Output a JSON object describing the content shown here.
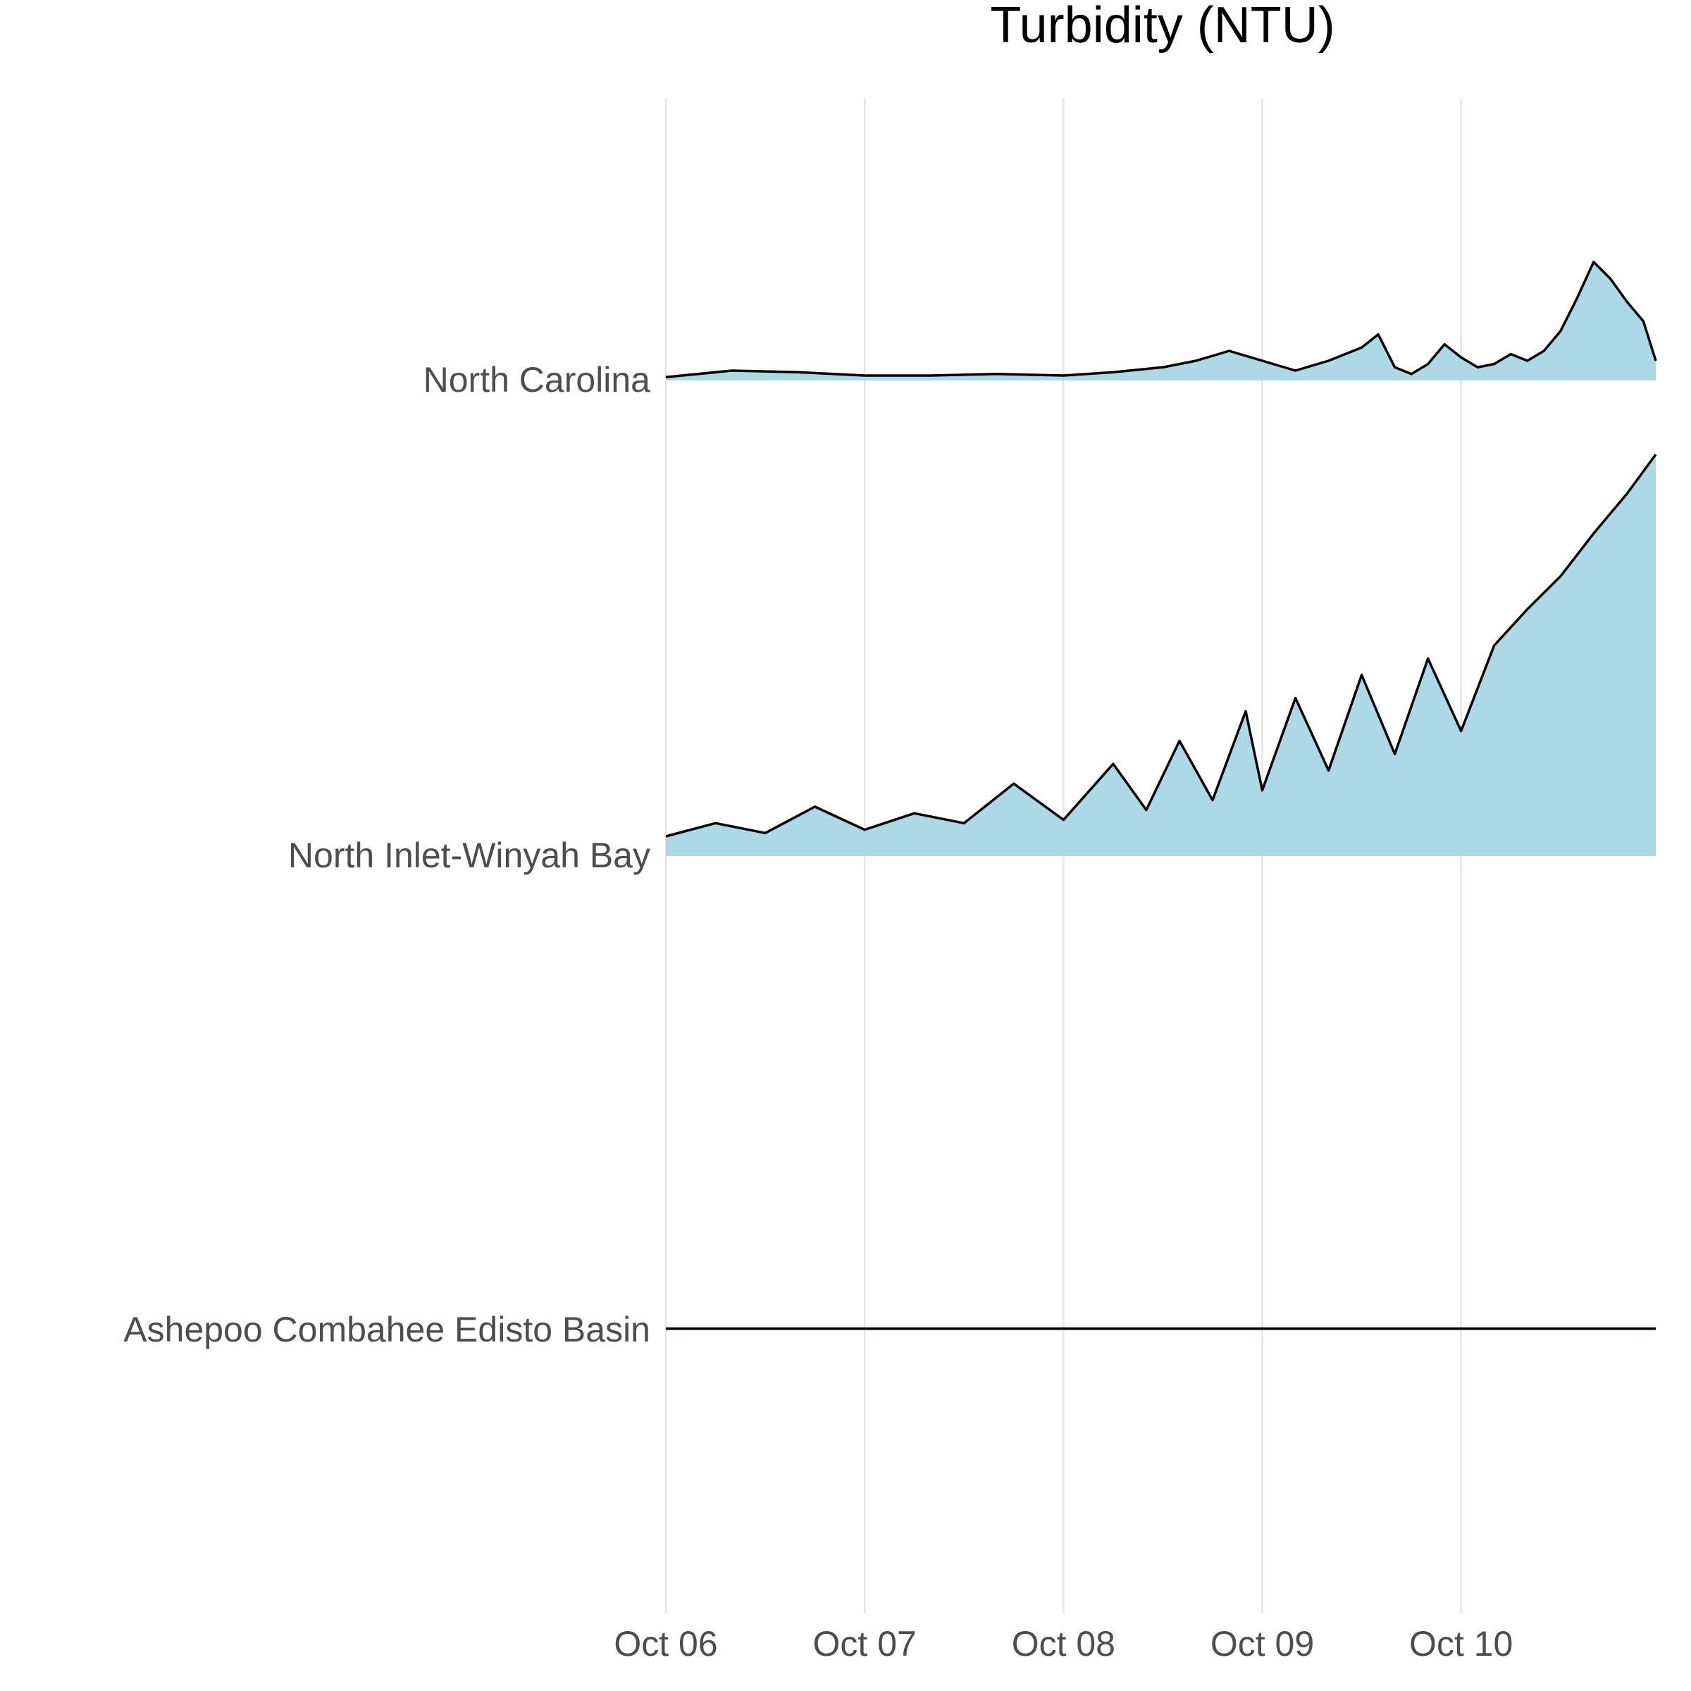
{
  "chart_data": {
    "type": "area",
    "subtype": "ridgeline",
    "title": "Turbidity (NTU)",
    "xlabel": "",
    "ylabel": "",
    "x_axis": {
      "type": "date",
      "range": [
        "2024-10-06T00:00",
        "2024-10-10T23:30"
      ],
      "tick_values": [
        "2024-10-06",
        "2024-10-07",
        "2024-10-08",
        "2024-10-09",
        "2024-10-10"
      ],
      "tick_labels": [
        "Oct 06",
        "Oct 07",
        "Oct 08",
        "Oct 09",
        "Oct 10"
      ]
    },
    "grid": {
      "vertical": true,
      "horizontal": false
    },
    "legend": "none",
    "fill_color": "#add8e6",
    "line_color": "#000000",
    "series_order_top_to_bottom": [
      "North Carolina",
      "North Inlet-Winyah Bay",
      "Ashepoo Combahee Edisto Basin"
    ],
    "series": [
      {
        "name": "North Carolina",
        "points": [
          [
            "2024-10-06T00:00",
            2
          ],
          [
            "2024-10-06T08:00",
            6
          ],
          [
            "2024-10-06T16:00",
            5
          ],
          [
            "2024-10-07T00:00",
            3
          ],
          [
            "2024-10-07T08:00",
            3
          ],
          [
            "2024-10-07T16:00",
            4
          ],
          [
            "2024-10-08T00:00",
            3
          ],
          [
            "2024-10-08T06:00",
            5
          ],
          [
            "2024-10-08T12:00",
            8
          ],
          [
            "2024-10-08T16:00",
            12
          ],
          [
            "2024-10-08T20:00",
            18
          ],
          [
            "2024-10-09T00:00",
            12
          ],
          [
            "2024-10-09T04:00",
            6
          ],
          [
            "2024-10-09T08:00",
            12
          ],
          [
            "2024-10-09T12:00",
            20
          ],
          [
            "2024-10-09T14:00",
            28
          ],
          [
            "2024-10-09T16:00",
            8
          ],
          [
            "2024-10-09T18:00",
            4
          ],
          [
            "2024-10-09T20:00",
            10
          ],
          [
            "2024-10-09T22:00",
            22
          ],
          [
            "2024-10-10T00:00",
            14
          ],
          [
            "2024-10-10T02:00",
            8
          ],
          [
            "2024-10-10T04:00",
            10
          ],
          [
            "2024-10-10T06:00",
            16
          ],
          [
            "2024-10-10T08:00",
            12
          ],
          [
            "2024-10-10T10:00",
            18
          ],
          [
            "2024-10-10T12:00",
            30
          ],
          [
            "2024-10-10T14:00",
            50
          ],
          [
            "2024-10-10T16:00",
            72
          ],
          [
            "2024-10-10T18:00",
            62
          ],
          [
            "2024-10-10T20:00",
            48
          ],
          [
            "2024-10-10T22:00",
            36
          ],
          [
            "2024-10-10T23:30",
            12
          ]
        ]
      },
      {
        "name": "North Inlet-Winyah Bay",
        "points": [
          [
            "2024-10-06T00:00",
            12
          ],
          [
            "2024-10-06T06:00",
            20
          ],
          [
            "2024-10-06T12:00",
            14
          ],
          [
            "2024-10-06T18:00",
            30
          ],
          [
            "2024-10-07T00:00",
            16
          ],
          [
            "2024-10-07T06:00",
            26
          ],
          [
            "2024-10-07T12:00",
            20
          ],
          [
            "2024-10-07T18:00",
            44
          ],
          [
            "2024-10-08T00:00",
            22
          ],
          [
            "2024-10-08T06:00",
            56
          ],
          [
            "2024-10-08T10:00",
            28
          ],
          [
            "2024-10-08T14:00",
            70
          ],
          [
            "2024-10-08T18:00",
            34
          ],
          [
            "2024-10-08T22:00",
            88
          ],
          [
            "2024-10-09T00:00",
            40
          ],
          [
            "2024-10-09T04:00",
            96
          ],
          [
            "2024-10-09T08:00",
            52
          ],
          [
            "2024-10-09T12:00",
            110
          ],
          [
            "2024-10-09T16:00",
            62
          ],
          [
            "2024-10-09T20:00",
            120
          ],
          [
            "2024-10-10T00:00",
            76
          ],
          [
            "2024-10-10T04:00",
            128
          ],
          [
            "2024-10-10T08:00",
            150
          ],
          [
            "2024-10-10T12:00",
            170
          ],
          [
            "2024-10-10T16:00",
            196
          ],
          [
            "2024-10-10T20:00",
            220
          ],
          [
            "2024-10-10T23:30",
            244
          ]
        ]
      },
      {
        "name": "Ashepoo Combahee Edisto Basin",
        "points": [
          [
            "2024-10-06T00:00",
            1
          ],
          [
            "2024-10-06T12:00",
            1
          ],
          [
            "2024-10-07T00:00",
            1
          ],
          [
            "2024-10-07T12:00",
            1
          ],
          [
            "2024-10-08T00:00",
            1
          ],
          [
            "2024-10-08T12:00",
            1
          ],
          [
            "2024-10-09T00:00",
            1
          ],
          [
            "2024-10-09T12:00",
            1
          ],
          [
            "2024-10-10T00:00",
            1
          ],
          [
            "2024-10-10T12:00",
            1
          ],
          [
            "2024-10-10T23:30",
            1
          ]
        ]
      }
    ]
  }
}
